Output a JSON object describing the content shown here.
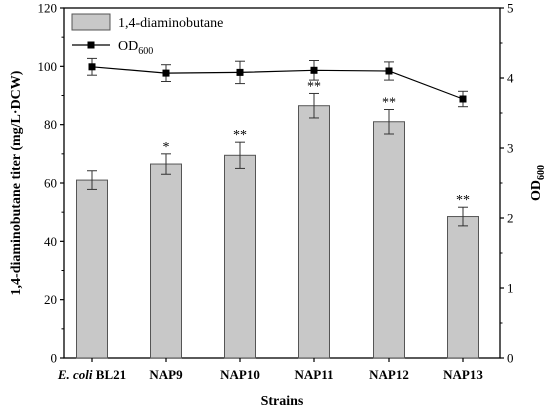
{
  "chart_data": {
    "type": "bar",
    "categories": [
      "E. coli BL21",
      "NAP9",
      "NAP10",
      "NAP11",
      "NAP12",
      "NAP13"
    ],
    "category_labels": [
      {
        "italic": "E. coli",
        "plain": " BL21"
      },
      {
        "italic": "",
        "plain": "NAP9"
      },
      {
        "italic": "",
        "plain": "NAP10"
      },
      {
        "italic": "",
        "plain": "NAP11"
      },
      {
        "italic": "",
        "plain": "NAP12"
      },
      {
        "italic": "",
        "plain": "NAP13"
      }
    ],
    "series": [
      {
        "name": "1,4-diaminobutane",
        "type": "bar",
        "axis": "left",
        "values": [
          61,
          66.5,
          69.5,
          86.5,
          81,
          48.5
        ],
        "errors": [
          3.2,
          3.5,
          4.5,
          4.2,
          4.2,
          3.2
        ],
        "color": "#c8c8c8"
      },
      {
        "name": "OD600",
        "type": "line",
        "axis": "right",
        "values": [
          4.16,
          4.07,
          4.08,
          4.11,
          4.1,
          3.7
        ],
        "errors": [
          0.12,
          0.12,
          0.16,
          0.14,
          0.13,
          0.11
        ],
        "color": "#000000"
      }
    ],
    "significance": [
      "",
      "*",
      "**",
      "**",
      "**",
      "**"
    ],
    "xlabel": "Strains",
    "ylabel": "1,4-diaminobutane titer (mg/L·DCW)",
    "y2label": "OD600",
    "ylim": [
      0,
      120
    ],
    "y2lim": [
      0,
      5
    ],
    "yticks": [
      0,
      20,
      40,
      60,
      80,
      100,
      120
    ],
    "y2ticks": [
      0,
      1,
      2,
      3,
      4,
      5
    ],
    "legend_position": "top-left",
    "grid": false
  }
}
